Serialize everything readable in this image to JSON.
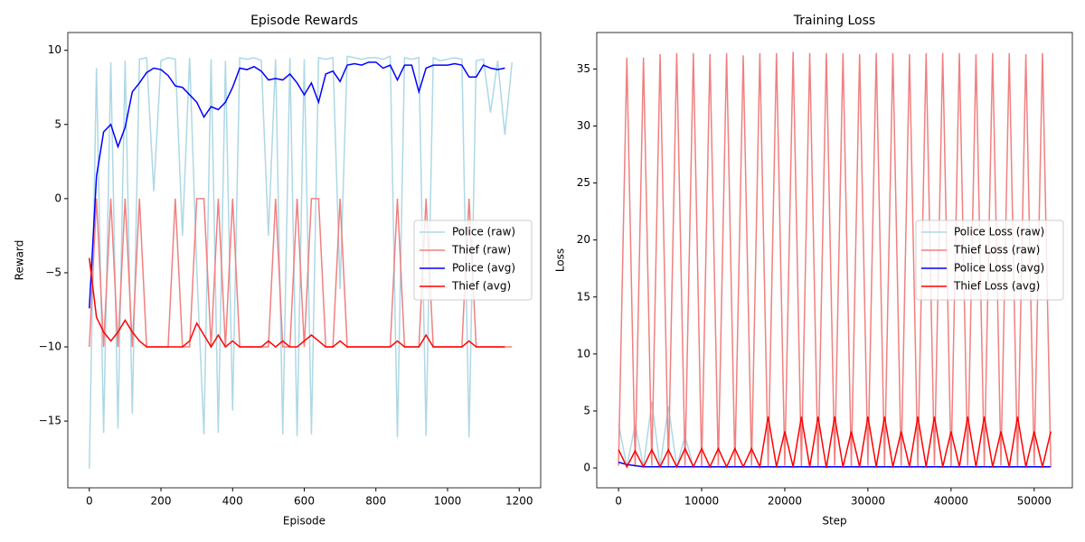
{
  "chart_data": [
    {
      "type": "line",
      "title": "Episode Rewards",
      "xlabel": "Episode",
      "ylabel": "Reward",
      "x": [
        0,
        20,
        40,
        60,
        80,
        100,
        120,
        140,
        160,
        180,
        200,
        220,
        240,
        260,
        280,
        300,
        320,
        340,
        360,
        380,
        400,
        420,
        440,
        460,
        480,
        500,
        520,
        540,
        560,
        580,
        600,
        620,
        640,
        660,
        680,
        700,
        720,
        740,
        760,
        780,
        800,
        820,
        840,
        860,
        880,
        900,
        920,
        940,
        960,
        980,
        1000,
        1020,
        1040,
        1060,
        1080,
        1100,
        1120,
        1140,
        1160,
        1180
      ],
      "xlim": [
        -60,
        1260
      ],
      "xticks": [
        0,
        200,
        400,
        600,
        800,
        1000,
        1200
      ],
      "ylim": [
        -19.5,
        11.2
      ],
      "yticks": [
        {
          "value": -15,
          "label": "−15"
        },
        {
          "value": -10,
          "label": "−10"
        },
        {
          "value": -5,
          "label": "−5"
        },
        0,
        5,
        10
      ],
      "legend": "center right",
      "series": [
        {
          "name": "Police (raw)",
          "color": "#add8e6",
          "values": [
            -18.2,
            8.8,
            -15.8,
            9.2,
            -15.5,
            9.3,
            -14.5,
            9.4,
            9.5,
            0.5,
            9.3,
            9.5,
            9.4,
            -2.5,
            9.5,
            -4.8,
            -15.9,
            9.4,
            -15.8,
            9.3,
            -14.3,
            9.5,
            9.4,
            9.5,
            9.3,
            -2.5,
            9.4,
            -15.9,
            9.5,
            -16.0,
            9.4,
            -15.9,
            9.5,
            9.4,
            9.5,
            -6.1,
            9.6,
            9.5,
            9.4,
            9.5,
            9.5,
            9.4,
            9.6,
            -16.1,
            9.5,
            9.4,
            9.5,
            -16.0,
            9.5,
            9.3,
            9.4,
            9.5,
            9.4,
            -16.1,
            9.3,
            9.4,
            5.8,
            9.3,
            4.3,
            9.2
          ]
        },
        {
          "name": "Thief (raw)",
          "color": "#f08080",
          "values": [
            -10,
            0,
            -10,
            0,
            -10,
            0,
            -10,
            0,
            -10,
            -10,
            -10,
            -10,
            0,
            -10,
            -10,
            0,
            0,
            -10,
            0,
            -10,
            0,
            -10,
            -10,
            -10,
            -10,
            -10,
            0,
            -10,
            -10,
            0,
            -10,
            0,
            0,
            -10,
            -10,
            0,
            -10,
            -10,
            -10,
            -10,
            -10,
            -10,
            -10,
            0,
            -10,
            -10,
            -10,
            0,
            -10,
            -10,
            -10,
            -10,
            -10,
            0,
            -10,
            -10,
            -10,
            -10,
            -10,
            -10
          ]
        },
        {
          "name": "Police (avg)",
          "color": "#0000ff",
          "values": [
            -7.4,
            1.5,
            4.5,
            5.0,
            3.5,
            4.8,
            7.2,
            7.8,
            8.5,
            8.8,
            8.7,
            8.3,
            7.6,
            7.5,
            7.0,
            6.5,
            5.5,
            6.2,
            6.0,
            6.5,
            7.5,
            8.8,
            8.7,
            8.9,
            8.6,
            8.0,
            8.1,
            8.0,
            8.4,
            7.8,
            7.0,
            7.8,
            6.5,
            8.4,
            8.6,
            7.9,
            9.0,
            9.1,
            9.0,
            9.2,
            9.2,
            8.8,
            9.0,
            8.0,
            9.0,
            9.0,
            7.2,
            8.8,
            9.0,
            9.0,
            9.0,
            9.1,
            9.0,
            8.2,
            8.2,
            9.0,
            8.8,
            8.7,
            8.8,
            null
          ]
        },
        {
          "name": "Thief (avg)",
          "color": "#ff0000",
          "values": [
            -4.0,
            -8.0,
            -9.0,
            -9.6,
            -9.0,
            -8.2,
            -9.0,
            -9.6,
            -10,
            -10,
            -10,
            -10,
            -10,
            -10,
            -9.6,
            -8.4,
            -9.2,
            -10,
            -9.2,
            -10,
            -9.6,
            -10,
            -10,
            -10,
            -10,
            -9.6,
            -10,
            -9.6,
            -10,
            -10,
            -9.6,
            -9.2,
            -9.6,
            -10,
            -10,
            -9.6,
            -10,
            -10,
            -10,
            -10,
            -10,
            -10,
            -10,
            -9.6,
            -10,
            -10,
            -10,
            -9.2,
            -10,
            -10,
            -10,
            -10,
            -10,
            -9.6,
            -10,
            -10,
            -10,
            -10,
            -10,
            null
          ]
        }
      ]
    },
    {
      "type": "line",
      "title": "Training Loss",
      "xlabel": "Step",
      "ylabel": "Loss",
      "x": [
        0,
        1000,
        2000,
        3000,
        4000,
        5000,
        6000,
        7000,
        8000,
        9000,
        10000,
        11000,
        12000,
        13000,
        14000,
        15000,
        16000,
        17000,
        18000,
        19000,
        20000,
        21000,
        22000,
        23000,
        24000,
        25000,
        26000,
        27000,
        28000,
        29000,
        30000,
        31000,
        32000,
        33000,
        34000,
        35000,
        36000,
        37000,
        38000,
        39000,
        40000,
        41000,
        42000,
        43000,
        44000,
        45000,
        46000,
        47000,
        48000,
        49000,
        50000,
        51000,
        52000
      ],
      "xlim": [
        -2620,
        54590
      ],
      "xticks": [
        0,
        10000,
        20000,
        30000,
        40000,
        50000
      ],
      "ylim": [
        -1.74,
        38.2
      ],
      "yticks": [
        0,
        5,
        10,
        15,
        20,
        25,
        30,
        35
      ],
      "legend": "center right",
      "series": [
        {
          "name": "Police Loss (raw)",
          "color": "#add8e6",
          "values": [
            3.9,
            0.1,
            3.8,
            0.1,
            5.8,
            0.1,
            5.4,
            0.1,
            2.8,
            0.1,
            0.1,
            0.05,
            0.1,
            0.05,
            0.1,
            0.05,
            0.1,
            0.05,
            0.1,
            0.05,
            0.1,
            0.05,
            0.1,
            0.05,
            0.1,
            0.05,
            0.1,
            0.05,
            0.1,
            0.05,
            0.1,
            0.05,
            0.1,
            0.05,
            0.1,
            0.05,
            0.1,
            0.05,
            0.1,
            0.05,
            0.1,
            0.05,
            0.1,
            0.05,
            0.1,
            0.05,
            0.1,
            0.05,
            0.1,
            0.05,
            0.1,
            0.05,
            0.1
          ]
        },
        {
          "name": "Thief Loss (raw)",
          "color": "#f08080",
          "values": [
            0.2,
            36.0,
            0.1,
            36.0,
            0.2,
            36.3,
            0.1,
            36.4,
            0.2,
            36.4,
            0.1,
            36.3,
            0.2,
            36.4,
            0.1,
            36.2,
            0.2,
            36.4,
            0.1,
            36.4,
            0.2,
            36.5,
            0.1,
            36.4,
            0.1,
            36.4,
            0.2,
            36.4,
            0.1,
            36.3,
            0.2,
            36.4,
            0.1,
            36.4,
            0.2,
            36.3,
            0.1,
            36.4,
            0.2,
            36.4,
            0.1,
            36.4,
            0.2,
            36.3,
            0.1,
            36.4,
            0.2,
            36.4,
            0.1,
            36.3,
            0.2,
            36.4,
            0.1
          ]
        },
        {
          "name": "Police Loss (avg)",
          "color": "#0000ff",
          "values": [
            0.5,
            0.3,
            0.2,
            0.1,
            0.1,
            0.1,
            0.1,
            0.1,
            0.1,
            0.1,
            0.1,
            0.1,
            0.1,
            0.1,
            0.1,
            0.1,
            0.1,
            0.1,
            0.1,
            0.1,
            0.1,
            0.1,
            0.1,
            0.1,
            0.1,
            0.1,
            0.1,
            0.1,
            0.1,
            0.1,
            0.1,
            0.1,
            0.1,
            0.1,
            0.1,
            0.1,
            0.1,
            0.1,
            0.1,
            0.1,
            0.1,
            0.1,
            0.1,
            0.1,
            0.1,
            0.1,
            0.1,
            0.1,
            0.1,
            0.1,
            0.1,
            0.1,
            0.1
          ]
        },
        {
          "name": "Thief Loss (avg)",
          "color": "#ff0000",
          "values": [
            1.6,
            0.1,
            1.5,
            0.1,
            1.6,
            0.1,
            1.6,
            0.1,
            1.7,
            0.1,
            1.7,
            0.1,
            1.7,
            0.1,
            1.7,
            0.1,
            1.7,
            0.1,
            4.5,
            0.1,
            3.2,
            0.1,
            4.5,
            0.1,
            4.5,
            0.0,
            4.5,
            0.1,
            3.2,
            0.1,
            4.5,
            0.1,
            4.5,
            0.1,
            3.2,
            0.1,
            4.5,
            0.1,
            4.5,
            0.1,
            3.2,
            0.1,
            4.5,
            0.1,
            4.5,
            0.1,
            3.2,
            0.1,
            4.5,
            0.1,
            3.2,
            0.1,
            3.2
          ]
        }
      ]
    }
  ]
}
